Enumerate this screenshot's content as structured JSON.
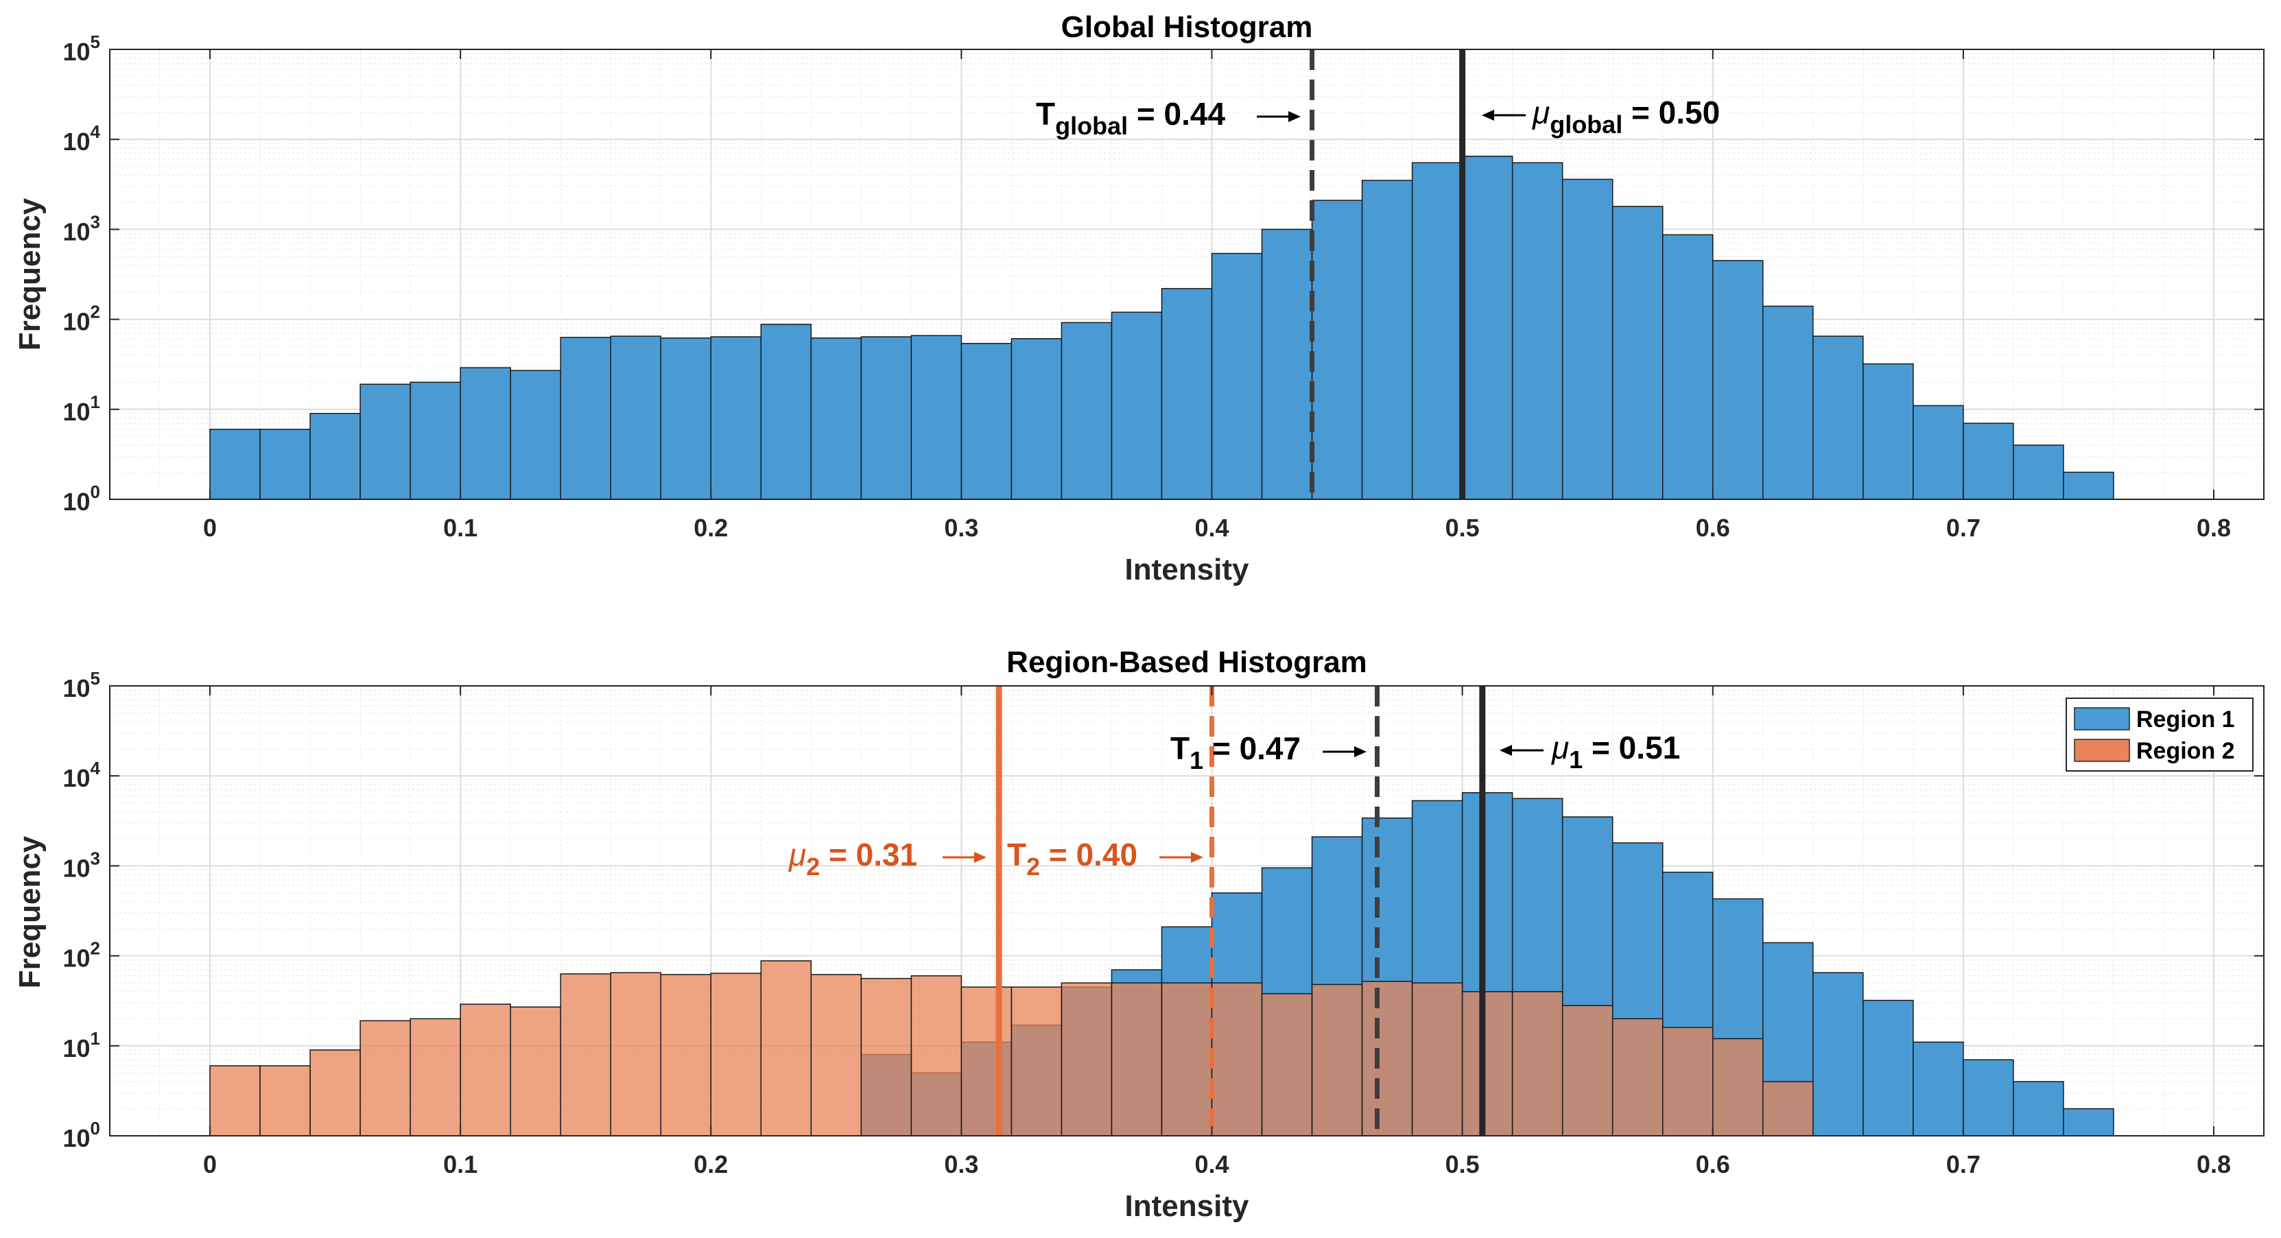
{
  "chart_data": [
    {
      "type": "bar",
      "title": "Global Histogram",
      "xlabel": "Intensity",
      "ylabel": "Frequency",
      "xlim": [
        -0.04,
        0.82
      ],
      "ylim": [
        1,
        100000
      ],
      "yscale": "log",
      "xticks": [
        "0",
        "0.1",
        "0.2",
        "0.3",
        "0.4",
        "0.5",
        "0.6",
        "0.7",
        "0.8"
      ],
      "yticks": [
        {
          "base": "10",
          "exp": "0"
        },
        {
          "base": "10",
          "exp": "1"
        },
        {
          "base": "10",
          "exp": "2"
        },
        {
          "base": "10",
          "exp": "3"
        },
        {
          "base": "10",
          "exp": "4"
        },
        {
          "base": "10",
          "exp": "5"
        }
      ],
      "grid": true,
      "bin_width": 0.02,
      "bin_start": 0,
      "series": [
        {
          "name": "Global",
          "color": "#4A9BD4",
          "values": [
            6,
            6,
            9,
            19,
            20,
            29,
            27,
            63,
            65,
            62,
            64,
            88,
            62,
            64,
            66,
            54,
            61,
            92,
            120,
            220,
            540,
            1000,
            2100,
            3500,
            5500,
            6500,
            5500,
            3600,
            1800,
            870,
            450,
            140,
            65,
            32,
            11,
            7,
            4,
            2,
            1
          ]
        }
      ],
      "lines": [
        {
          "x": 0.44,
          "style": "dashed",
          "color": "#3D3D3D",
          "label_main": "T",
          "label_sub": "global",
          "label_value": " = 0.44 "
        },
        {
          "x": 0.5,
          "style": "solid",
          "color": "#262626",
          "label_main": "μ",
          "label_sub": "global",
          "label_value": " = 0.50"
        }
      ]
    },
    {
      "type": "bar",
      "title": "Region-Based Histogram",
      "xlabel": "Intensity",
      "ylabel": "Frequency",
      "xlim": [
        -0.04,
        0.82
      ],
      "ylim": [
        1,
        100000
      ],
      "yscale": "log",
      "xticks": [
        "0",
        "0.1",
        "0.2",
        "0.3",
        "0.4",
        "0.5",
        "0.6",
        "0.7",
        "0.8"
      ],
      "yticks": [
        {
          "base": "10",
          "exp": "0"
        },
        {
          "base": "10",
          "exp": "1"
        },
        {
          "base": "10",
          "exp": "2"
        },
        {
          "base": "10",
          "exp": "3"
        },
        {
          "base": "10",
          "exp": "4"
        },
        {
          "base": "10",
          "exp": "5"
        }
      ],
      "grid": true,
      "legend": "top-right",
      "bin_width": 0.02,
      "bin_start": 0,
      "series": [
        {
          "name": "Region 1",
          "color": "#4A9BD4",
          "values": [
            0,
            0,
            0,
            0,
            0,
            0,
            0,
            0,
            0,
            0,
            0,
            0,
            0,
            8,
            5,
            11,
            17,
            45,
            70,
            210,
            500,
            950,
            2100,
            3400,
            5300,
            6500,
            5600,
            3500,
            1800,
            850,
            430,
            140,
            65,
            32,
            11,
            7,
            4,
            2,
            1
          ]
        },
        {
          "name": "Region 2",
          "color": "#E8845A",
          "values": [
            6,
            6,
            9,
            19,
            20,
            29,
            27,
            63,
            65,
            62,
            64,
            88,
            62,
            56,
            60,
            45,
            45,
            50,
            50,
            50,
            50,
            38,
            48,
            52,
            50,
            40,
            40,
            28,
            20,
            16,
            12,
            4
          ]
        }
      ],
      "lines": [
        {
          "x": 0.315,
          "style": "solid",
          "color": "#E8703A",
          "label_main": "μ",
          "label_sub": "2",
          "label_value": " = 0.31 "
        },
        {
          "x": 0.4,
          "style": "dashed",
          "color": "#E8703A",
          "label_main": "T",
          "label_sub": "2",
          "label_value": " = 0.40 "
        },
        {
          "x": 0.466,
          "style": "dashed",
          "color": "#3D3D3D",
          "label_main": "T",
          "label_sub": "1",
          "label_value": " = 0.47 "
        },
        {
          "x": 0.508,
          "style": "solid",
          "color": "#262626",
          "label_main": "μ",
          "label_sub": "1",
          "label_value": " = 0.51"
        }
      ]
    }
  ]
}
